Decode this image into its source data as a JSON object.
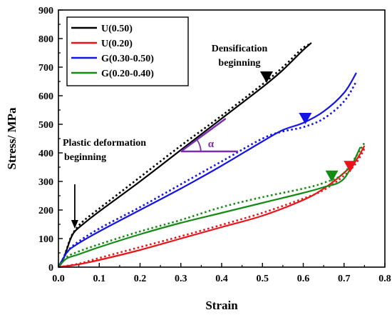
{
  "chart_data": {
    "type": "line",
    "xlabel": "Strain",
    "ylabel": "Stress/ MPa",
    "xlim": [
      0.0,
      0.8
    ],
    "ylim": [
      0,
      900
    ],
    "xticks": [
      "0.0",
      "0.1",
      "0.2",
      "0.3",
      "0.4",
      "0.5",
      "0.6",
      "0.7",
      "0.8"
    ],
    "yticks": [
      "0",
      "100",
      "200",
      "300",
      "400",
      "500",
      "600",
      "700",
      "800",
      "900"
    ],
    "grid": false,
    "legend_position": "top-left",
    "series": [
      {
        "name": "U(0.50)",
        "color": "#000000",
        "solid": [
          [
            0,
            0
          ],
          [
            0.01,
            20
          ],
          [
            0.02,
            60
          ],
          [
            0.03,
            100
          ],
          [
            0.04,
            125
          ],
          [
            0.06,
            150
          ],
          [
            0.1,
            195
          ],
          [
            0.2,
            300
          ],
          [
            0.3,
            410
          ],
          [
            0.4,
            520
          ],
          [
            0.5,
            630
          ],
          [
            0.55,
            690
          ],
          [
            0.6,
            760
          ],
          [
            0.62,
            785
          ]
        ],
        "dotted": [
          [
            0,
            0
          ],
          [
            0.01,
            22
          ],
          [
            0.02,
            62
          ],
          [
            0.03,
            103
          ],
          [
            0.04,
            128
          ],
          [
            0.06,
            160
          ],
          [
            0.1,
            205
          ],
          [
            0.2,
            315
          ],
          [
            0.3,
            425
          ],
          [
            0.4,
            530
          ],
          [
            0.5,
            640
          ],
          [
            0.55,
            700
          ],
          [
            0.6,
            768
          ],
          [
            0.62,
            780
          ]
        ]
      },
      {
        "name": "U(0.20)",
        "color": "#e8141a",
        "solid": [
          [
            0,
            0
          ],
          [
            0.05,
            10
          ],
          [
            0.1,
            25
          ],
          [
            0.2,
            60
          ],
          [
            0.3,
            100
          ],
          [
            0.4,
            140
          ],
          [
            0.5,
            180
          ],
          [
            0.6,
            235
          ],
          [
            0.65,
            275
          ],
          [
            0.7,
            330
          ],
          [
            0.73,
            375
          ],
          [
            0.75,
            425
          ]
        ],
        "dotted": [
          [
            0,
            0
          ],
          [
            0.05,
            12
          ],
          [
            0.1,
            32
          ],
          [
            0.2,
            70
          ],
          [
            0.3,
            108
          ],
          [
            0.4,
            148
          ],
          [
            0.5,
            190
          ],
          [
            0.6,
            240
          ],
          [
            0.65,
            270
          ],
          [
            0.7,
            320
          ],
          [
            0.73,
            365
          ],
          [
            0.75,
            415
          ]
        ]
      },
      {
        "name": "G(0.30-0.50)",
        "color": "#1414e6",
        "solid": [
          [
            0,
            0
          ],
          [
            0.02,
            50
          ],
          [
            0.04,
            75
          ],
          [
            0.1,
            125
          ],
          [
            0.2,
            200
          ],
          [
            0.3,
            275
          ],
          [
            0.4,
            355
          ],
          [
            0.5,
            440
          ],
          [
            0.55,
            480
          ],
          [
            0.6,
            505
          ],
          [
            0.65,
            545
          ],
          [
            0.7,
            610
          ],
          [
            0.73,
            680
          ]
        ],
        "dotted": [
          [
            0,
            0
          ],
          [
            0.02,
            50
          ],
          [
            0.04,
            80
          ],
          [
            0.1,
            135
          ],
          [
            0.2,
            210
          ],
          [
            0.3,
            290
          ],
          [
            0.4,
            370
          ],
          [
            0.5,
            450
          ],
          [
            0.55,
            475
          ],
          [
            0.6,
            490
          ],
          [
            0.65,
            520
          ],
          [
            0.7,
            580
          ],
          [
            0.73,
            650
          ]
        ]
      },
      {
        "name": "G(0.20-0.40)",
        "color": "#148c14",
        "solid": [
          [
            0,
            0
          ],
          [
            0.02,
            30
          ],
          [
            0.05,
            45
          ],
          [
            0.1,
            70
          ],
          [
            0.2,
            115
          ],
          [
            0.3,
            155
          ],
          [
            0.4,
            190
          ],
          [
            0.5,
            225
          ],
          [
            0.6,
            260
          ],
          [
            0.65,
            280
          ],
          [
            0.7,
            310
          ],
          [
            0.74,
            420
          ]
        ],
        "dotted": [
          [
            0,
            0
          ],
          [
            0.02,
            35
          ],
          [
            0.05,
            55
          ],
          [
            0.1,
            80
          ],
          [
            0.2,
            125
          ],
          [
            0.3,
            165
          ],
          [
            0.4,
            210
          ],
          [
            0.5,
            245
          ],
          [
            0.6,
            275
          ],
          [
            0.65,
            295
          ],
          [
            0.7,
            330
          ],
          [
            0.75,
            435
          ]
        ]
      }
    ],
    "markers": [
      {
        "x": 0.51,
        "y": 665,
        "color": "#000000"
      },
      {
        "x": 0.605,
        "y": 520,
        "color": "#1414e6"
      },
      {
        "x": 0.67,
        "y": 318,
        "color": "#148c14"
      },
      {
        "x": 0.715,
        "y": 352,
        "color": "#e8141a"
      }
    ],
    "slope_marker": {
      "x1": 0.3,
      "y1": 405,
      "x2": 0.44,
      "y2": 405,
      "x3": 0.41,
      "y3": 520,
      "color": "#7a2fb0",
      "label": "α"
    },
    "arrow": {
      "x_from": 0.04,
      "y_from": 290,
      "x_to": 0.04,
      "y_to": 135
    },
    "annotations": {
      "densification": [
        "Densification",
        "beginning"
      ],
      "plastic": [
        "Plastic deformation",
        "beginning"
      ]
    }
  }
}
